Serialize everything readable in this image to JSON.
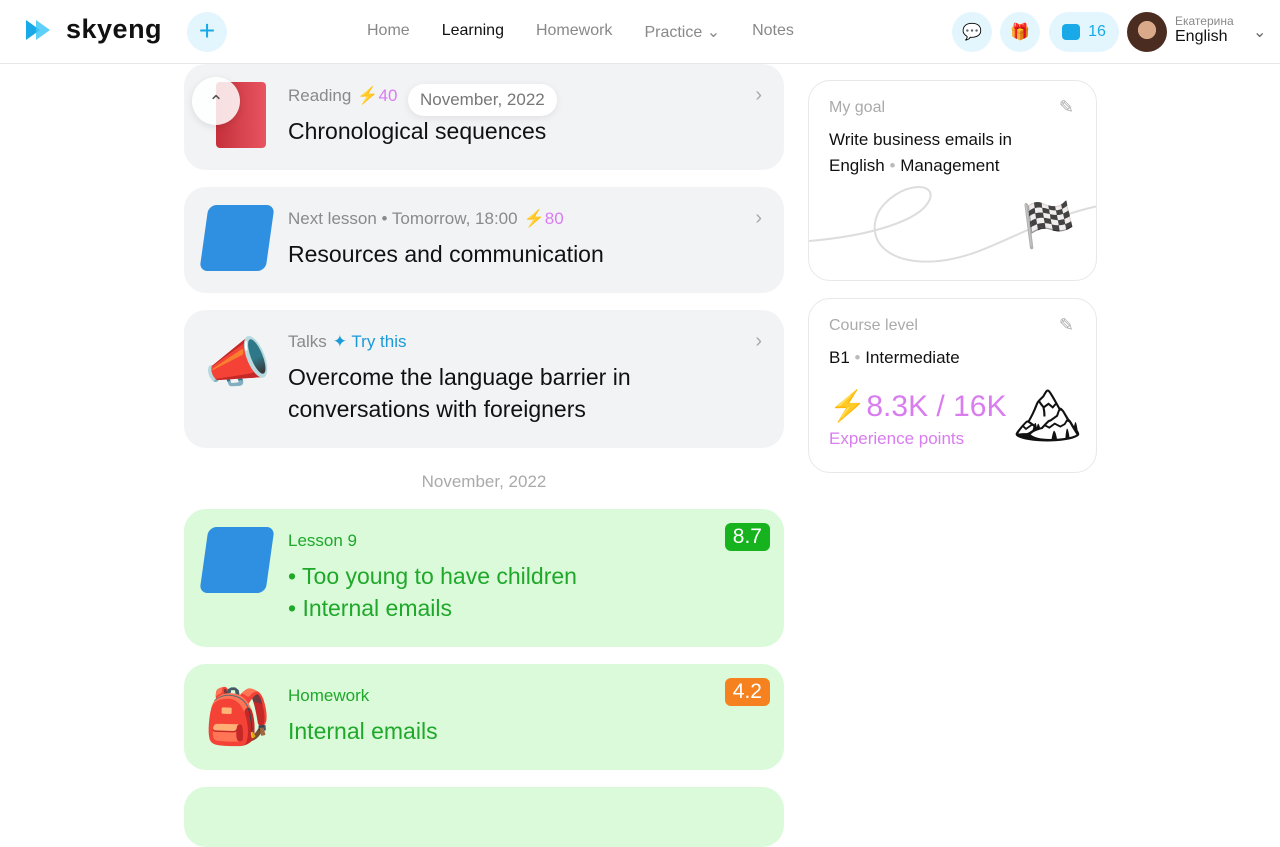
{
  "header": {
    "brand": "skyeng",
    "nav": [
      "Home",
      "Learning",
      "Homework",
      "Practice",
      "Notes"
    ],
    "active": "Learning",
    "wallet_count": "16",
    "user_name": "Екатерина",
    "user_course": "English"
  },
  "floating_date": "November, 2022",
  "cards": [
    {
      "meta": "Reading",
      "xp": "40",
      "title": "Chronological sequences",
      "icon": "book-icon"
    },
    {
      "meta": "Next lesson • Tomorrow, 18:00",
      "xp": "80",
      "title": "Resources and communication",
      "icon": "laptop-icon"
    },
    {
      "meta": "Talks",
      "tag": "Try this",
      "title": "Overcome the language barrier in conversations with foreigners",
      "icon": "megaphone-icon"
    }
  ],
  "section_date": "November, 2022",
  "done": [
    {
      "meta": "Lesson 9",
      "lines": [
        "• Too young to have children",
        "• Internal emails"
      ],
      "score": "8.7",
      "score_color": "#16b31f"
    },
    {
      "meta": "Homework",
      "title": "Internal emails",
      "score": "4.2",
      "score_color": "#f5821f"
    }
  ],
  "goal": {
    "label": "My goal",
    "text": "Write business emails in English",
    "tag": "Management"
  },
  "level": {
    "label": "Course level",
    "level": "B1",
    "name": "Intermediate",
    "xp": "8.3K / 16K",
    "xp_label": "Experience points"
  },
  "colors": {
    "accent": "#1aa9e8",
    "xp": "#d97cf0",
    "green": "#1fa82a"
  }
}
